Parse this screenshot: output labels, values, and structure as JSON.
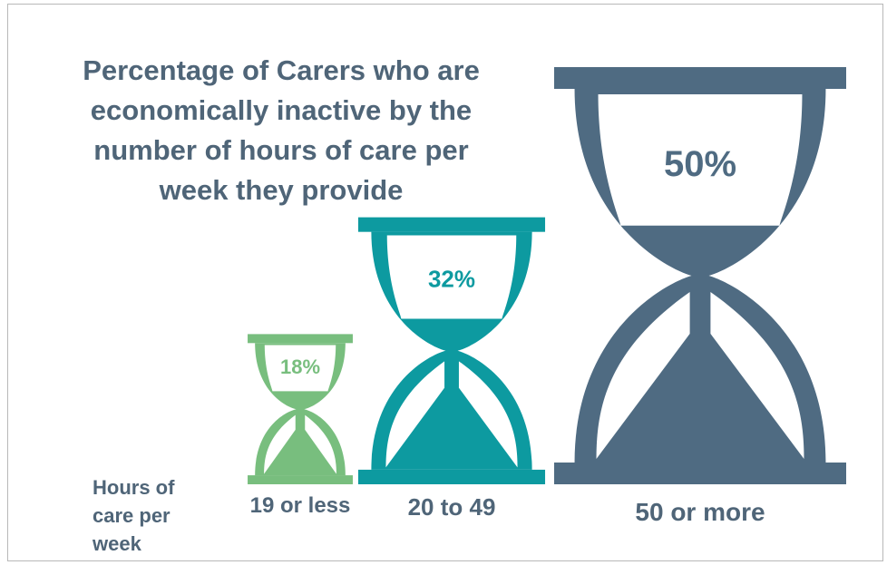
{
  "chart_data": {
    "type": "bar",
    "title_lines": [
      "Percentage of Carers who are",
      "economically inactive by the",
      "number of hours of care per",
      "week they provide"
    ],
    "xlabel_lines": [
      "Hours of",
      "care per",
      "week"
    ],
    "categories": [
      "19 or less",
      "20 to 49",
      "50 or more"
    ],
    "values": [
      18,
      32,
      50
    ],
    "value_labels": [
      "18%",
      "32%",
      "50%"
    ],
    "colors": [
      "#78be7e",
      "#0d9aa0",
      "#4f6b82"
    ]
  }
}
